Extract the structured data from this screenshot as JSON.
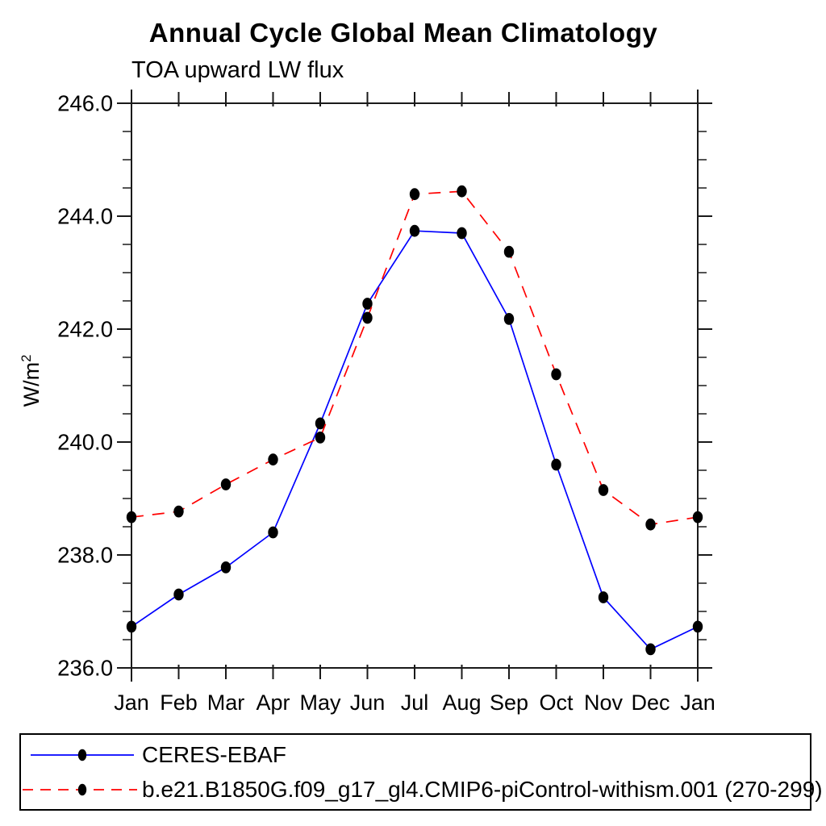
{
  "chart_data": {
    "type": "line",
    "title": "Annual Cycle Global Mean Climatology",
    "subtitle": "TOA upward LW flux",
    "ylabel_base": "W/m",
    "ylabel_sup": "2",
    "x_labels": [
      "Jan",
      "Feb",
      "Mar",
      "Apr",
      "May",
      "Jun",
      "Jul",
      "Aug",
      "Sep",
      "Oct",
      "Nov",
      "Dec",
      "Jan"
    ],
    "ylim": [
      236.0,
      246.0
    ],
    "y_major_step": 2.0,
    "y_minor_step": 0.5,
    "y_tick_labels": [
      "236.0",
      "238.0",
      "240.0",
      "242.0",
      "244.0",
      "246.0"
    ],
    "grid": false,
    "legend_position": "bottom",
    "frame_color": "#1a1a1a",
    "marker_shape": "filled-circle",
    "series": [
      {
        "name": "CERES-EBAF",
        "color": "#0000ff",
        "line_style": "solid",
        "marker_color": "#000000",
        "values": [
          236.73,
          237.3,
          237.78,
          238.4,
          240.33,
          242.45,
          243.74,
          243.7,
          242.18,
          239.6,
          237.25,
          236.33,
          236.73
        ]
      },
      {
        "name": "b.e21.B1850G.f09_g17_gl4.CMIP6-piControl-withism.001 (270-299)",
        "color": "#ff0000",
        "line_style": "dashed",
        "marker_color": "#000000",
        "values": [
          238.67,
          238.77,
          239.25,
          239.69,
          240.08,
          242.2,
          244.39,
          244.44,
          243.37,
          241.2,
          239.15,
          238.54,
          238.67
        ]
      }
    ]
  }
}
